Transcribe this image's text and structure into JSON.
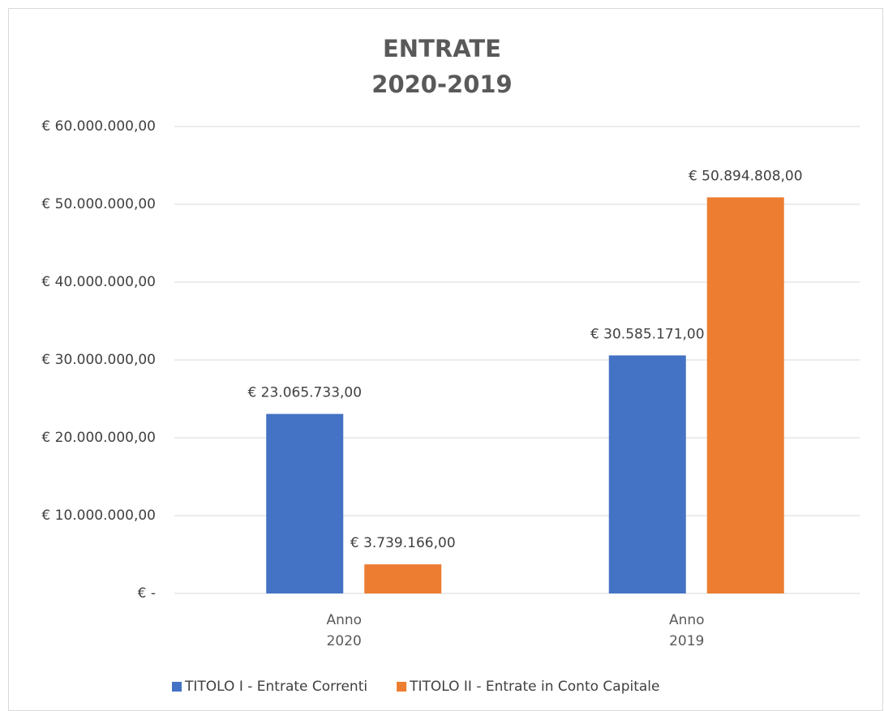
{
  "chart_data": {
    "type": "bar",
    "title": "ENTRATE 2020-2019",
    "categories": [
      "Anno 2020",
      "Anno 2019"
    ],
    "series": [
      {
        "name": "TITOLO I - Entrate Correnti",
        "color": "#4472c4",
        "values": [
          23065733,
          30585171
        ],
        "value_labels": [
          "€ 23.065.733,00",
          "€ 30.585.171,00"
        ]
      },
      {
        "name": "TITOLO II - Entrate in Conto Capitale",
        "color": "#ed7d31",
        "values": [
          3739166,
          50894808
        ],
        "value_labels": [
          "€ 3.739.166,00",
          "€ 50.894.808,00"
        ]
      }
    ],
    "ylim": [
      0,
      60000000
    ],
    "yticks": [
      {
        "value": 0,
        "label": "€ -"
      },
      {
        "value": 10000000,
        "label": "€ 10.000.000,00"
      },
      {
        "value": 20000000,
        "label": "€ 20.000.000,00"
      },
      {
        "value": 30000000,
        "label": "€ 30.000.000,00"
      },
      {
        "value": 40000000,
        "label": "€ 40.000.000,00"
      },
      {
        "value": 50000000,
        "label": "€ 50.000.000,00"
      },
      {
        "value": 60000000,
        "label": "€ 60.000.000,00"
      }
    ],
    "grid": true,
    "legend": "bottom"
  }
}
